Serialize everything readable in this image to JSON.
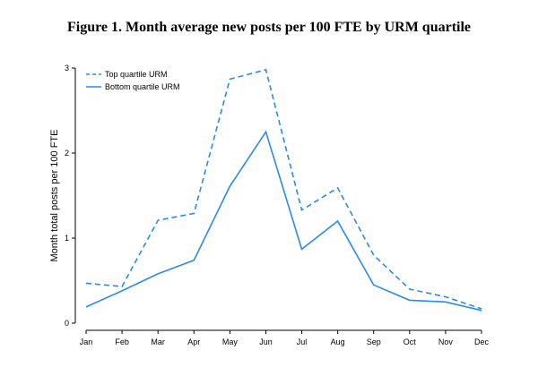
{
  "chart_data": {
    "type": "line",
    "title": "Figure 1. Month average new posts per 100 FTE by URM quartile",
    "xlabel": "",
    "ylabel": "Month total posts per 100 FTE",
    "categories": [
      "Jan",
      "Feb",
      "Mar",
      "Apr",
      "May",
      "Jun",
      "Jul",
      "Aug",
      "Sep",
      "Oct",
      "Nov",
      "Dec"
    ],
    "yticks": [
      "0",
      "1",
      "2",
      "3"
    ],
    "ylim": [
      0,
      3
    ],
    "grid": false,
    "legend_position": "top-left",
    "series": [
      {
        "name": "Top quartile URM",
        "style": "dashed",
        "color": "#2b8ae6",
        "values": [
          0.47,
          0.43,
          1.21,
          1.29,
          2.87,
          2.98,
          1.33,
          1.59,
          0.8,
          0.4,
          0.31,
          0.17
        ]
      },
      {
        "name": "Bottom quartile URM",
        "style": "solid",
        "color": "#2b8ae6",
        "values": [
          0.19,
          0.38,
          0.58,
          0.74,
          1.61,
          2.25,
          0.87,
          1.2,
          0.45,
          0.27,
          0.25,
          0.15
        ]
      }
    ]
  }
}
